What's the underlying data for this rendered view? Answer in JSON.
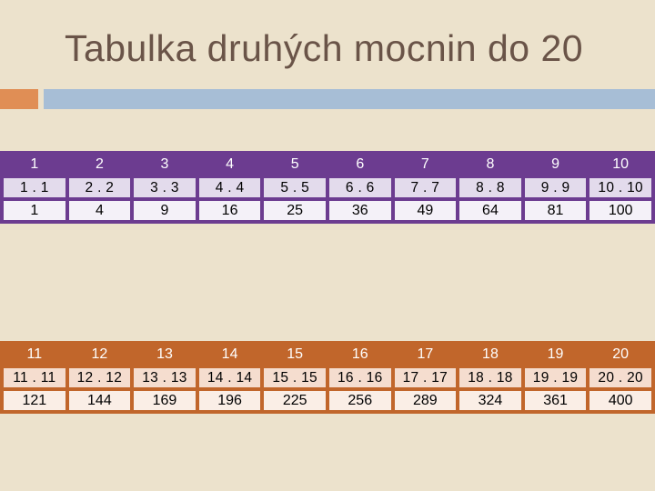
{
  "title": "Tabulka druhých mocnin do 20",
  "colors": {
    "background": "#ece2cc",
    "title": "#6a5448",
    "accent_orange": "#e08e55",
    "accent_blue": "#a7bed6",
    "table_top_border": "#6c3c90",
    "table_bottom_border": "#c1662b"
  },
  "tables": [
    {
      "numbers": [
        "1",
        "2",
        "3",
        "4",
        "5",
        "6",
        "7",
        "8",
        "9",
        "10"
      ],
      "products": [
        "1 . 1",
        "2 . 2",
        "3 . 3",
        "4 . 4",
        "5 . 5",
        "6 . 6",
        "7 . 7",
        "8 . 8",
        "9 . 9",
        "10 . 10"
      ],
      "squares": [
        "1",
        "4",
        "9",
        "16",
        "25",
        "36",
        "49",
        "64",
        "81",
        "100"
      ]
    },
    {
      "numbers": [
        "11",
        "12",
        "13",
        "14",
        "15",
        "16",
        "17",
        "18",
        "19",
        "20"
      ],
      "products": [
        "11 . 11",
        "12 . 12",
        "13 . 13",
        "14 . 14",
        "15 . 15",
        "16 . 16",
        "17 . 17",
        "18 . 18",
        "19 . 19",
        "20 . 20"
      ],
      "squares": [
        "121",
        "144",
        "169",
        "196",
        "225",
        "256",
        "289",
        "324",
        "361",
        "400"
      ]
    }
  ]
}
